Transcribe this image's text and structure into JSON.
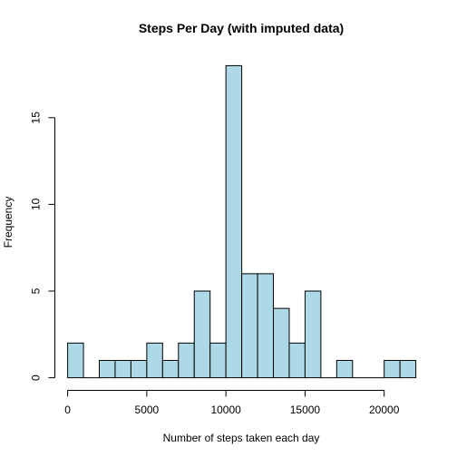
{
  "chart_data": {
    "type": "bar",
    "title": "Steps Per Day (with imputed data)",
    "xlabel": "Number of steps taken each day",
    "ylabel": "Frequency",
    "bin_width": 1000,
    "bins": [
      {
        "x0": 0,
        "x1": 1000,
        "count": 2
      },
      {
        "x0": 1000,
        "x1": 2000,
        "count": 0
      },
      {
        "x0": 2000,
        "x1": 3000,
        "count": 1
      },
      {
        "x0": 3000,
        "x1": 4000,
        "count": 1
      },
      {
        "x0": 4000,
        "x1": 5000,
        "count": 1
      },
      {
        "x0": 5000,
        "x1": 6000,
        "count": 2
      },
      {
        "x0": 6000,
        "x1": 7000,
        "count": 1
      },
      {
        "x0": 7000,
        "x1": 8000,
        "count": 2
      },
      {
        "x0": 8000,
        "x1": 9000,
        "count": 5
      },
      {
        "x0": 9000,
        "x1": 10000,
        "count": 2
      },
      {
        "x0": 10000,
        "x1": 11000,
        "count": 18
      },
      {
        "x0": 11000,
        "x1": 12000,
        "count": 6
      },
      {
        "x0": 12000,
        "x1": 13000,
        "count": 6
      },
      {
        "x0": 13000,
        "x1": 14000,
        "count": 4
      },
      {
        "x0": 14000,
        "x1": 15000,
        "count": 2
      },
      {
        "x0": 15000,
        "x1": 16000,
        "count": 5
      },
      {
        "x0": 16000,
        "x1": 17000,
        "count": 0
      },
      {
        "x0": 17000,
        "x1": 18000,
        "count": 1
      },
      {
        "x0": 18000,
        "x1": 19000,
        "count": 0
      },
      {
        "x0": 19000,
        "x1": 20000,
        "count": 0
      },
      {
        "x0": 20000,
        "x1": 21000,
        "count": 1
      },
      {
        "x0": 21000,
        "x1": 22000,
        "count": 1
      }
    ],
    "xlim": [
      0,
      22000
    ],
    "ylim": [
      0,
      18
    ],
    "x_ticks": [
      0,
      5000,
      10000,
      15000,
      20000
    ],
    "y_ticks": [
      0,
      5,
      10,
      15
    ],
    "bar_color": "#add8e6",
    "grid": false,
    "legend": "none"
  }
}
